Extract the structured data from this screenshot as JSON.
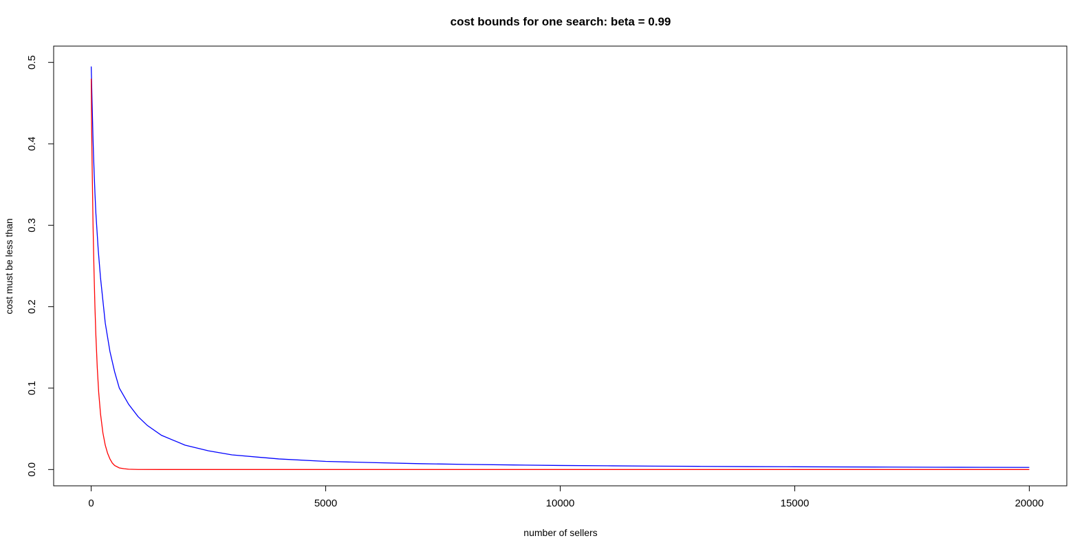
{
  "chart_data": {
    "type": "line",
    "title": "cost bounds for one search: beta = 0.99",
    "xlabel": "number of sellers",
    "ylabel": "cost must be less than",
    "xlim": [
      -800,
      20800
    ],
    "ylim": [
      -0.02,
      0.52
    ],
    "x_ticks": [
      0,
      5000,
      10000,
      15000,
      20000
    ],
    "x_tick_labels": [
      "0",
      "5000",
      "10000",
      "15000",
      "20000"
    ],
    "y_ticks": [
      0.0,
      0.1,
      0.2,
      0.3,
      0.4,
      0.5
    ],
    "y_tick_labels": [
      "0.0",
      "0.1",
      "0.2",
      "0.3",
      "0.4",
      "0.5"
    ],
    "grid": false,
    "legend": "none",
    "series": [
      {
        "color": "#0000ff",
        "x": [
          1,
          20,
          40,
          60,
          80,
          100,
          150,
          200,
          300,
          400,
          500,
          600,
          800,
          1000,
          1200,
          1500,
          2000,
          2500,
          3000,
          4000,
          5000,
          6000,
          7000,
          8000,
          9000,
          10000,
          11000,
          12000,
          13000,
          14000,
          15000,
          16000,
          17000,
          18000,
          19000,
          20000
        ],
        "y": [
          0.495,
          0.45,
          0.405,
          0.37,
          0.34,
          0.315,
          0.27,
          0.235,
          0.18,
          0.145,
          0.12,
          0.1,
          0.08,
          0.065,
          0.054,
          0.042,
          0.03,
          0.023,
          0.018,
          0.013,
          0.01,
          0.0085,
          0.0072,
          0.0063,
          0.0056,
          0.005,
          0.0046,
          0.0042,
          0.0039,
          0.0036,
          0.0034,
          0.0032,
          0.003,
          0.0028,
          0.0027,
          0.0026
        ]
      },
      {
        "color": "#ff0000",
        "x": [
          1,
          10,
          20,
          40,
          60,
          80,
          100,
          130,
          160,
          200,
          250,
          300,
          350,
          400,
          450,
          500,
          600,
          700,
          800,
          1000,
          1500,
          2000,
          3000,
          5000,
          10000,
          15000,
          20000
        ],
        "y": [
          0.48,
          0.42,
          0.375,
          0.3,
          0.245,
          0.2,
          0.165,
          0.125,
          0.095,
          0.068,
          0.045,
          0.03,
          0.02,
          0.013,
          0.008,
          0.005,
          0.002,
          0.001,
          0.0004,
          0.0001,
          0.0,
          0.0,
          0.0,
          0.0,
          0.0,
          0.0,
          0.0
        ]
      }
    ]
  }
}
